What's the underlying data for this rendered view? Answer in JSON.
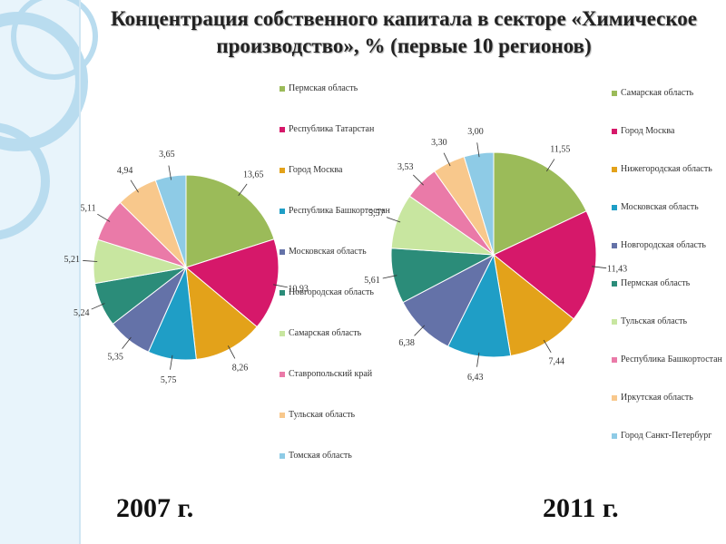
{
  "title": "Концентрация собственного капитала в секторе «Химическое производство», % (первые 10 регионов)",
  "chart_data": [
    {
      "type": "pie",
      "subtitle": "2007 г.",
      "categories": [
        "Пермская область",
        "Республика Татарстан",
        "Город Москва",
        "Республика Башкортостан",
        "Московская область",
        "Новгородская область",
        "Самарская область",
        "Ставропольский край",
        "Тульская область",
        "Томская область"
      ],
      "values": [
        13.65,
        10.93,
        8.26,
        5.75,
        5.35,
        5.24,
        5.21,
        5.11,
        4.94,
        3.65
      ],
      "value_labels": [
        "13,65",
        "10,93",
        "8,26",
        "5,75",
        "5,35",
        "5,24",
        "5,21",
        "5,11",
        "4,94",
        "3,65"
      ],
      "colors": [
        "#9bbb59",
        "#d6186a",
        "#e3a21a",
        "#1f9ec6",
        "#6472a8",
        "#2b8c79",
        "#c8e6a0",
        "#ea7aa8",
        "#f8c88c",
        "#8ecbe6"
      ]
    },
    {
      "type": "pie",
      "subtitle": "2011 г.",
      "categories": [
        "Самарская область",
        "Город Москва",
        "Нижегородская область",
        "Московская область",
        "Новгородская область",
        "Пермская область",
        "Тульская область",
        "Республика Башкортостан",
        "Иркутская область",
        "Город Санкт-Петербург"
      ],
      "values": [
        11.55,
        11.43,
        7.44,
        6.43,
        6.38,
        5.61,
        5.57,
        3.53,
        3.3,
        3.0
      ],
      "value_labels": [
        "11,55",
        "11,43",
        "7,44",
        "6,43",
        "6,38",
        "5,61",
        "5,57",
        "3,53",
        "3,30",
        "3,00"
      ],
      "colors": [
        "#9bbb59",
        "#d6186a",
        "#e3a21a",
        "#1f9ec6",
        "#6472a8",
        "#2b8c79",
        "#c8e6a0",
        "#ea7aa8",
        "#f8c88c",
        "#8ecbe6"
      ]
    }
  ]
}
